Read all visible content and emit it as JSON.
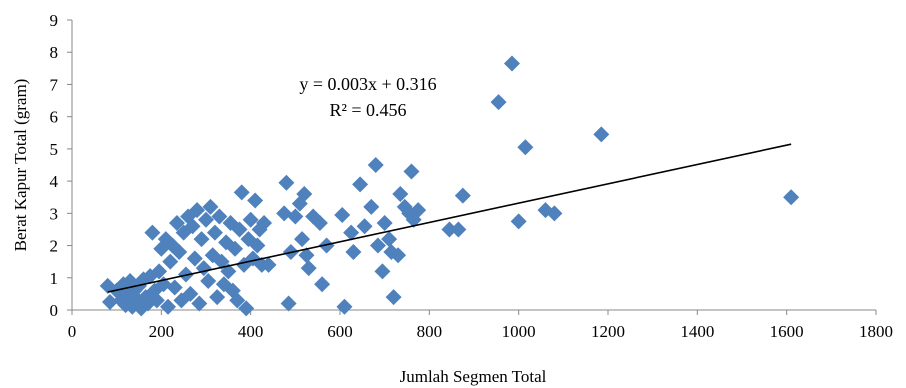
{
  "chart_data": {
    "type": "scatter",
    "xlabel": "Jumlah Segmen  Total",
    "ylabel": "Berat Kapur Total (gram)",
    "xlim": [
      0,
      1800
    ],
    "ylim": [
      0,
      9
    ],
    "xticks": [
      0,
      200,
      400,
      600,
      800,
      1000,
      1200,
      1400,
      1600,
      1800
    ],
    "yticks": [
      0,
      1,
      2,
      3,
      4,
      5,
      6,
      7,
      8,
      9
    ],
    "grid": false,
    "marker_color": "#4F81BD",
    "trendline": {
      "slope": 0.003,
      "intercept": 0.316,
      "x_range": [
        80,
        1610
      ],
      "equation_label": "y = 0.003x + 0.316",
      "r2_label": "R² = 0.456"
    },
    "points": [
      [
        80,
        0.75
      ],
      [
        85,
        0.25
      ],
      [
        100,
        0.6
      ],
      [
        110,
        0.3
      ],
      [
        115,
        0.8
      ],
      [
        120,
        0.15
      ],
      [
        125,
        0.45
      ],
      [
        130,
        0.9
      ],
      [
        135,
        0.1
      ],
      [
        140,
        0.6
      ],
      [
        145,
        0.35
      ],
      [
        150,
        0.75
      ],
      [
        155,
        0.05
      ],
      [
        160,
        0.95
      ],
      [
        165,
        0.4
      ],
      [
        170,
        0.2
      ],
      [
        175,
        1.05
      ],
      [
        180,
        2.4
      ],
      [
        185,
        0.6
      ],
      [
        190,
        0.3
      ],
      [
        195,
        1.2
      ],
      [
        200,
        1.9
      ],
      [
        205,
        0.8
      ],
      [
        210,
        2.2
      ],
      [
        215,
        0.1
      ],
      [
        220,
        1.5
      ],
      [
        225,
        2.0
      ],
      [
        230,
        0.7
      ],
      [
        235,
        2.7
      ],
      [
        240,
        1.8
      ],
      [
        245,
        0.3
      ],
      [
        250,
        2.4
      ],
      [
        255,
        1.1
      ],
      [
        260,
        2.9
      ],
      [
        265,
        0.5
      ],
      [
        270,
        2.6
      ],
      [
        275,
        1.6
      ],
      [
        280,
        3.1
      ],
      [
        285,
        0.2
      ],
      [
        290,
        2.2
      ],
      [
        295,
        1.3
      ],
      [
        300,
        2.8
      ],
      [
        305,
        0.9
      ],
      [
        310,
        3.2
      ],
      [
        315,
        1.7
      ],
      [
        320,
        2.4
      ],
      [
        325,
        0.4
      ],
      [
        330,
        2.9
      ],
      [
        335,
        1.5
      ],
      [
        340,
        0.8
      ],
      [
        345,
        2.1
      ],
      [
        350,
        1.2
      ],
      [
        355,
        2.7
      ],
      [
        360,
        0.6
      ],
      [
        365,
        1.9
      ],
      [
        370,
        0.3
      ],
      [
        375,
        2.5
      ],
      [
        380,
        3.65
      ],
      [
        385,
        1.4
      ],
      [
        390,
        0.05
      ],
      [
        395,
        2.2
      ],
      [
        400,
        2.8
      ],
      [
        405,
        1.6
      ],
      [
        410,
        3.4
      ],
      [
        415,
        2.0
      ],
      [
        420,
        2.5
      ],
      [
        425,
        1.4
      ],
      [
        430,
        2.7
      ],
      [
        440,
        1.4
      ],
      [
        475,
        3.0
      ],
      [
        480,
        3.95
      ],
      [
        485,
        0.2
      ],
      [
        490,
        1.8
      ],
      [
        500,
        2.9
      ],
      [
        510,
        3.3
      ],
      [
        515,
        2.2
      ],
      [
        520,
        3.6
      ],
      [
        525,
        1.7
      ],
      [
        530,
        1.3
      ],
      [
        540,
        2.9
      ],
      [
        555,
        2.7
      ],
      [
        560,
        0.8
      ],
      [
        570,
        2.0
      ],
      [
        605,
        2.95
      ],
      [
        610,
        0.1
      ],
      [
        625,
        2.4
      ],
      [
        630,
        1.8
      ],
      [
        645,
        3.9
      ],
      [
        655,
        2.6
      ],
      [
        670,
        3.2
      ],
      [
        680,
        4.5
      ],
      [
        685,
        2.0
      ],
      [
        695,
        1.2
      ],
      [
        700,
        2.7
      ],
      [
        710,
        2.2
      ],
      [
        715,
        1.8
      ],
      [
        720,
        0.4
      ],
      [
        730,
        1.7
      ],
      [
        735,
        3.6
      ],
      [
        745,
        3.2
      ],
      [
        755,
        3.0
      ],
      [
        760,
        4.3
      ],
      [
        765,
        2.8
      ],
      [
        775,
        3.1
      ],
      [
        845,
        2.5
      ],
      [
        865,
        2.5
      ],
      [
        875,
        3.55
      ],
      [
        955,
        6.45
      ],
      [
        985,
        7.65
      ],
      [
        1000,
        2.75
      ],
      [
        1015,
        5.05
      ],
      [
        1060,
        3.1
      ],
      [
        1080,
        3.0
      ],
      [
        1185,
        5.45
      ],
      [
        1610,
        3.5
      ]
    ]
  }
}
